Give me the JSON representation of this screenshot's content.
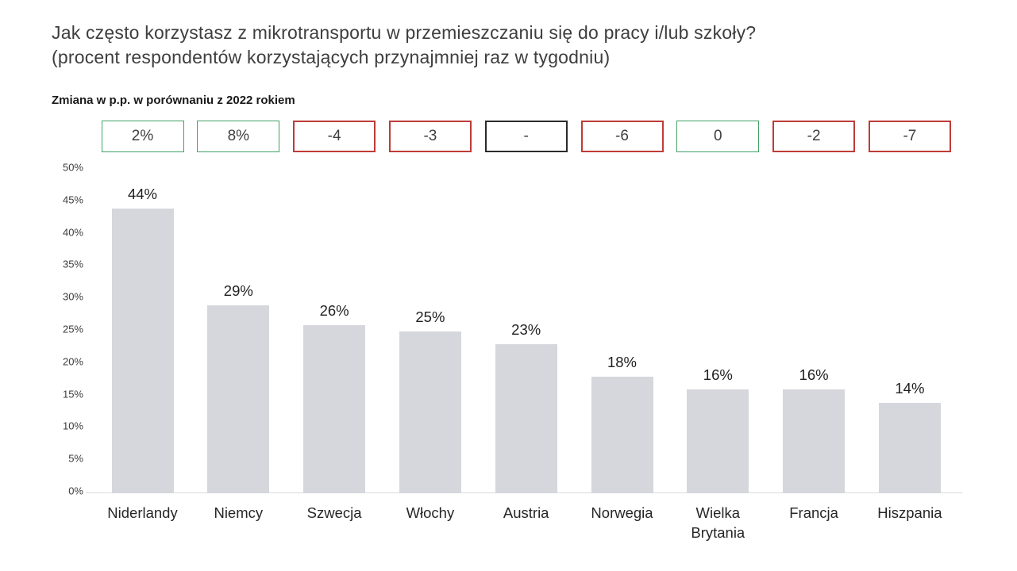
{
  "title": {
    "line1": "Jak często korzystasz z mikrotransportu w przemieszczaniu się do pracy i/lub szkoły?",
    "line2": "(procent respondentów korzystających przynajmniej raz w tygodniu)"
  },
  "subtitle": "Zmiana w p.p. w porównaniu z 2022 rokiem",
  "chart_data": {
    "type": "bar",
    "title": "Jak często korzystasz z mikrotransportu w przemieszczaniu się do pracy i/lub szkoły? (procent respondentów korzystających przynajmniej raz w tygodniu)",
    "subtitle": "Zmiana w p.p. w porównaniu z 2022 rokiem",
    "categories": [
      "Niderlandy",
      "Niemcy",
      "Szwecja",
      "Włochy",
      "Austria",
      "Norwegia",
      "Wielka Brytania",
      "Francja",
      "Hiszpania"
    ],
    "values": [
      44,
      29,
      26,
      25,
      23,
      18,
      16,
      16,
      14
    ],
    "value_labels": [
      "44%",
      "29%",
      "26%",
      "25%",
      "23%",
      "18%",
      "16%",
      "16%",
      "14%"
    ],
    "changes_vs_2022": [
      {
        "label": "2%",
        "color": "green"
      },
      {
        "label": "8%",
        "color": "green"
      },
      {
        "label": "-4",
        "color": "red"
      },
      {
        "label": "-3",
        "color": "red"
      },
      {
        "label": "-",
        "color": "black"
      },
      {
        "label": "-6",
        "color": "red"
      },
      {
        "label": "0",
        "color": "green"
      },
      {
        "label": "-2",
        "color": "red"
      },
      {
        "label": "-7",
        "color": "red"
      }
    ],
    "y_axis": {
      "min": 0,
      "max": 50,
      "step": 5,
      "tick_suffix": "%"
    },
    "xlabel": "",
    "ylabel": "",
    "ylim": [
      0,
      50
    ],
    "grid": false,
    "legend": false,
    "colors": {
      "bar": "#d6d6dd",
      "baseline": "#d9d9d9",
      "green_border": "#42a168",
      "red_border": "#bf3b36",
      "black_border": "#2b2b2b",
      "title_text": "#3e3e3e",
      "label_text": "#1f1f1f"
    }
  }
}
